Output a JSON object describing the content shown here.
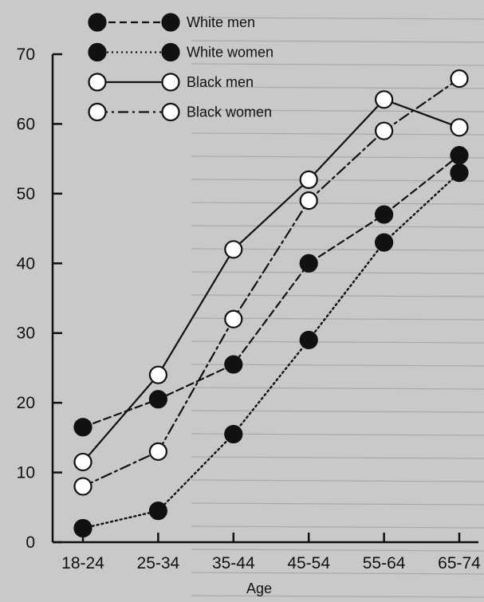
{
  "chart_data": {
    "type": "line",
    "categories": [
      "18-24",
      "25-34",
      "35-44",
      "45-54",
      "55-64",
      "65-74"
    ],
    "xlabel": "Age",
    "ylabel": "",
    "ylim": [
      0,
      70
    ],
    "yticks": [
      0,
      10,
      20,
      30,
      40,
      50,
      60,
      70
    ],
    "grid": false,
    "legend_position": "top-left",
    "series": [
      {
        "name": "White men",
        "values": [
          16.5,
          20.5,
          25.5,
          40,
          47,
          55.5
        ],
        "line_style": "dashed",
        "marker": "filled",
        "color": "#111111"
      },
      {
        "name": "White women",
        "values": [
          2,
          4.5,
          15.5,
          29,
          43,
          53
        ],
        "line_style": "dotted",
        "marker": "filled",
        "color": "#111111"
      },
      {
        "name": "Black men",
        "values": [
          11.5,
          24,
          42,
          52,
          63.5,
          59.5
        ],
        "line_style": "solid",
        "marker": "open",
        "color": "#111111"
      },
      {
        "name": "Black women",
        "values": [
          8,
          13,
          32,
          49,
          59,
          66.5
        ],
        "line_style": "dashdot",
        "marker": "open",
        "color": "#111111"
      }
    ]
  }
}
